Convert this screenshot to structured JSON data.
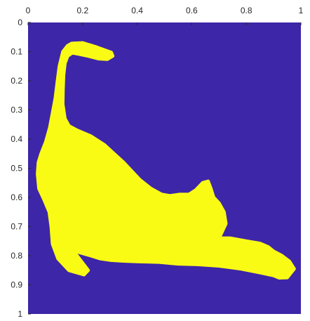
{
  "chart_data": {
    "type": "heatmap",
    "title": "",
    "xlabel": "",
    "ylabel": "",
    "xlim": [
      0,
      1
    ],
    "ylim": [
      0,
      1
    ],
    "y_reversed": true,
    "x_axis_location": "top",
    "grid": false,
    "x_ticks": [
      0,
      0.2,
      0.4,
      0.6,
      0.8,
      1
    ],
    "x_tick_labels": [
      "0",
      "0.2",
      "0.4",
      "0.6",
      "0.8",
      "1"
    ],
    "y_ticks": [
      0,
      0.1,
      0.2,
      0.3,
      0.4,
      0.5,
      0.6,
      0.7,
      0.8,
      0.9,
      1
    ],
    "y_tick_labels": [
      "0",
      "0.1",
      "0.2",
      "0.3",
      "0.4",
      "0.5",
      "0.6",
      "0.7",
      "0.8",
      "0.9",
      "1"
    ],
    "background_value": 0,
    "foreground_value": 1,
    "colors": {
      "background": "#3e26a8",
      "foreground": "#f9fb15",
      "axis": "#262626"
    },
    "silhouette_boundary": [
      [
        0.305,
        0.103
      ],
      [
        0.252,
        0.085
      ],
      [
        0.2,
        0.07
      ],
      [
        0.16,
        0.072
      ],
      [
        0.145,
        0.08
      ],
      [
        0.128,
        0.1
      ],
      [
        0.115,
        0.15
      ],
      [
        0.108,
        0.2
      ],
      [
        0.1,
        0.26
      ],
      [
        0.09,
        0.31
      ],
      [
        0.08,
        0.36
      ],
      [
        0.065,
        0.41
      ],
      [
        0.048,
        0.45
      ],
      [
        0.038,
        0.48
      ],
      [
        0.035,
        0.52
      ],
      [
        0.04,
        0.57
      ],
      [
        0.06,
        0.61
      ],
      [
        0.078,
        0.65
      ],
      [
        0.085,
        0.7
      ],
      [
        0.09,
        0.76
      ],
      [
        0.11,
        0.81
      ],
      [
        0.15,
        0.85
      ],
      [
        0.205,
        0.865
      ],
      [
        0.22,
        0.85
      ],
      [
        0.175,
        0.795
      ],
      [
        0.175,
        0.785
      ],
      [
        0.23,
        0.8
      ],
      [
        0.265,
        0.81
      ],
      [
        0.3,
        0.815
      ],
      [
        0.35,
        0.818
      ],
      [
        0.4,
        0.82
      ],
      [
        0.48,
        0.822
      ],
      [
        0.55,
        0.828
      ],
      [
        0.62,
        0.83
      ],
      [
        0.7,
        0.835
      ],
      [
        0.78,
        0.845
      ],
      [
        0.85,
        0.858
      ],
      [
        0.9,
        0.868
      ],
      [
        0.92,
        0.876
      ],
      [
        0.95,
        0.875
      ],
      [
        0.975,
        0.845
      ],
      [
        0.958,
        0.82
      ],
      [
        0.93,
        0.8
      ],
      [
        0.9,
        0.785
      ],
      [
        0.88,
        0.77
      ],
      [
        0.85,
        0.758
      ],
      [
        0.8,
        0.75
      ],
      [
        0.74,
        0.74
      ],
      [
        0.7,
        0.74
      ],
      [
        0.71,
        0.72
      ],
      [
        0.725,
        0.69
      ],
      [
        0.718,
        0.65
      ],
      [
        0.7,
        0.62
      ],
      [
        0.68,
        0.6
      ],
      [
        0.67,
        0.57
      ],
      [
        0.66,
        0.545
      ],
      [
        0.64,
        0.55
      ],
      [
        0.615,
        0.575
      ],
      [
        0.59,
        0.59
      ],
      [
        0.555,
        0.59
      ],
      [
        0.52,
        0.595
      ],
      [
        0.49,
        0.59
      ],
      [
        0.45,
        0.57
      ],
      [
        0.41,
        0.54
      ],
      [
        0.38,
        0.51
      ],
      [
        0.35,
        0.48
      ],
      [
        0.315,
        0.45
      ],
      [
        0.28,
        0.42
      ],
      [
        0.23,
        0.39
      ],
      [
        0.18,
        0.37
      ],
      [
        0.15,
        0.355
      ],
      [
        0.135,
        0.33
      ],
      [
        0.127,
        0.28
      ],
      [
        0.128,
        0.23
      ],
      [
        0.13,
        0.18
      ],
      [
        0.135,
        0.14
      ],
      [
        0.145,
        0.115
      ],
      [
        0.162,
        0.104
      ],
      [
        0.185,
        0.108
      ],
      [
        0.22,
        0.115
      ],
      [
        0.258,
        0.124
      ],
      [
        0.29,
        0.126
      ],
      [
        0.31,
        0.115
      ]
    ]
  }
}
